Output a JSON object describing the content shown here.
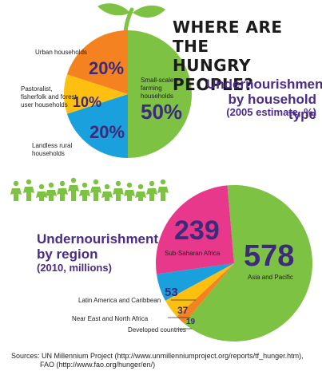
{
  "header": {
    "title_line1": "WHERE ARE THE",
    "title_line2": "HUNGRY PEOPLE?"
  },
  "chart_data": [
    {
      "type": "pie",
      "title": "Undernourishment by household type",
      "subtitle": "(2005 estimate, %)",
      "slices": [
        {
          "label": "Small-scale farming households",
          "value": 50,
          "value_label": "50%",
          "color": "#7dc242"
        },
        {
          "label": "Landless rural households",
          "value": 20,
          "value_label": "20%",
          "color": "#1aa0dc"
        },
        {
          "label": "Pastoralist, fisherfolk and forest user households",
          "value": 10,
          "value_label": "10%",
          "color": "#fdc010"
        },
        {
          "label": "Urban households",
          "value": 20,
          "value_label": "20%",
          "color": "#f58220"
        }
      ]
    },
    {
      "type": "pie",
      "title": "Undernourishment by region",
      "subtitle": "(2010, millions)",
      "slices": [
        {
          "label": "Asia and Pacific",
          "value": 578,
          "value_label": "578",
          "color": "#7dc242"
        },
        {
          "label": "Developed countries",
          "value": 19,
          "value_label": "19",
          "color": "#f58220"
        },
        {
          "label": "Near East and North Africa",
          "value": 37,
          "value_label": "37",
          "color": "#fdc010"
        },
        {
          "label": "Latin America and Caribbean",
          "value": 53,
          "value_label": "53",
          "color": "#1aa0dc"
        },
        {
          "label": "Sub-Saharan Africa",
          "value": 239,
          "value_label": "239",
          "color": "#e8388c"
        }
      ]
    }
  ],
  "sources": {
    "line1": "Sources:  UN Millennium Project (http://www.unmillenniumproject.org/reports/tf_hunger.htm),",
    "line2": "FAO (http://www.fao.org/hunger/en/)"
  },
  "colors": {
    "leaf": "#7dc242",
    "people": "#7dc242",
    "subtitle": "#4a2a8a"
  }
}
